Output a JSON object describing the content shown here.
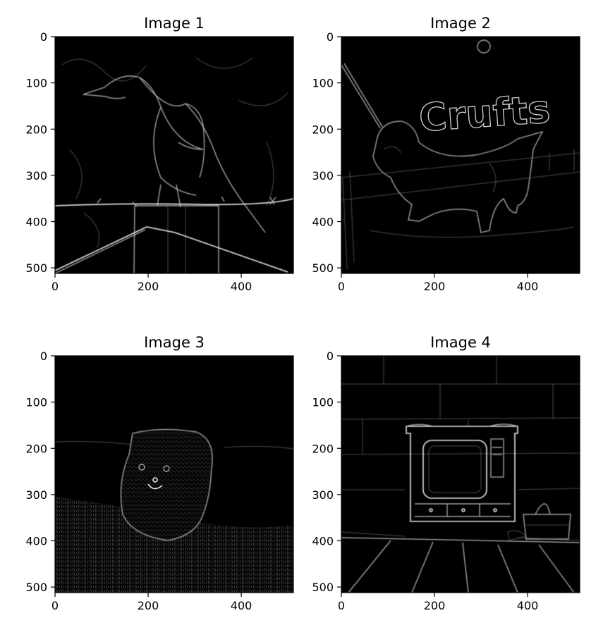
{
  "chart_data": [
    {
      "type": "image",
      "title": "Image 1",
      "xticks": [
        0,
        200,
        400
      ],
      "yticks": [
        0,
        100,
        200,
        300,
        400,
        500
      ],
      "xlim": [
        0,
        512
      ],
      "ylim": [
        512,
        0
      ],
      "colormap": "gray",
      "content": "bird-on-fence-edges"
    },
    {
      "type": "image",
      "title": "Image 2",
      "xticks": [
        0,
        200,
        400
      ],
      "yticks": [
        0,
        100,
        200,
        300,
        400,
        500
      ],
      "xlim": [
        0,
        512
      ],
      "ylim": [
        512,
        0
      ],
      "colormap": "gray",
      "content": "dog-crufts-edges"
    },
    {
      "type": "image",
      "title": "Image 3",
      "xticks": [
        0,
        200,
        400
      ],
      "yticks": [
        0,
        100,
        200,
        300,
        400,
        500
      ],
      "xlim": [
        0,
        512
      ],
      "ylim": [
        512,
        0
      ],
      "colormap": "gray",
      "content": "dog-in-grass-edges"
    },
    {
      "type": "image",
      "title": "Image 4",
      "xticks": [
        0,
        200,
        400
      ],
      "yticks": [
        0,
        100,
        200,
        300,
        400,
        500
      ],
      "xlim": [
        0,
        512
      ],
      "ylim": [
        512,
        0
      ],
      "colormap": "gray",
      "content": "tv-cabinet-edges"
    }
  ],
  "panel_text": {
    "sign_text": "Crufts"
  }
}
